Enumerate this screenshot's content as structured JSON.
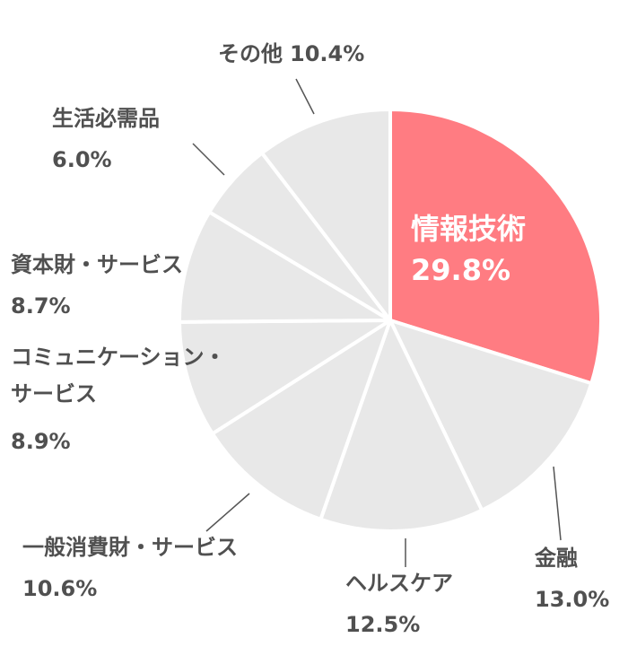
{
  "chart_data": {
    "type": "pie",
    "categories": [
      "情報技術",
      "金融",
      "ヘルスケア",
      "一般消費財・サービス",
      "コミュニケーション・サービス",
      "資本財・サービス",
      "生活必需品",
      "その他"
    ],
    "values": [
      29.8,
      13.0,
      12.5,
      10.6,
      8.9,
      8.7,
      6.0,
      10.4
    ],
    "value_labels": [
      "29.8%",
      "13.0%",
      "12.5%",
      "10.6%",
      "8.9%",
      "8.7%",
      "6.0%",
      "10.4%"
    ],
    "colors": [
      "#ff7c82",
      "#e8e8e8",
      "#e8e8e8",
      "#e8e8e8",
      "#e8e8e8",
      "#e8e8e8",
      "#e8e8e8",
      "#e8e8e8"
    ]
  }
}
